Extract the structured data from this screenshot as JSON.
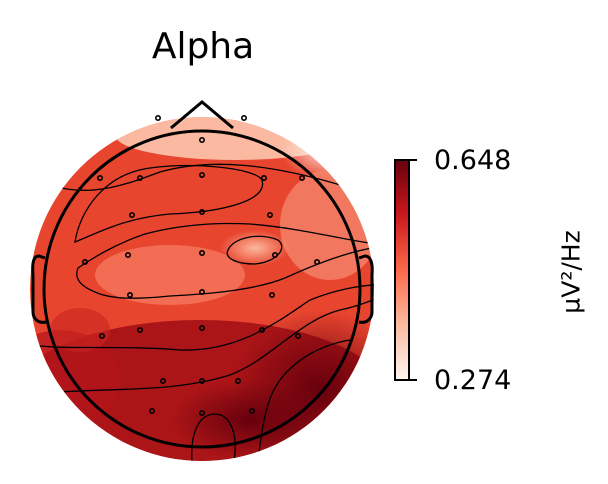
{
  "chart_data": {
    "type": "heatmap",
    "subtype": "eeg-topomap",
    "title": "Alpha",
    "colorbar": {
      "label": "µV²/Hz",
      "min": 0.274,
      "max": 0.648,
      "ticks": [
        "0.648",
        "0.274"
      ],
      "colormap": "Reds",
      "colors": [
        "#fff5f0",
        "#fcbba1",
        "#fb6a4a",
        "#cb181d",
        "#67000d"
      ]
    },
    "sensor_count": 30,
    "contour_lines": true,
    "head_outline": true
  }
}
